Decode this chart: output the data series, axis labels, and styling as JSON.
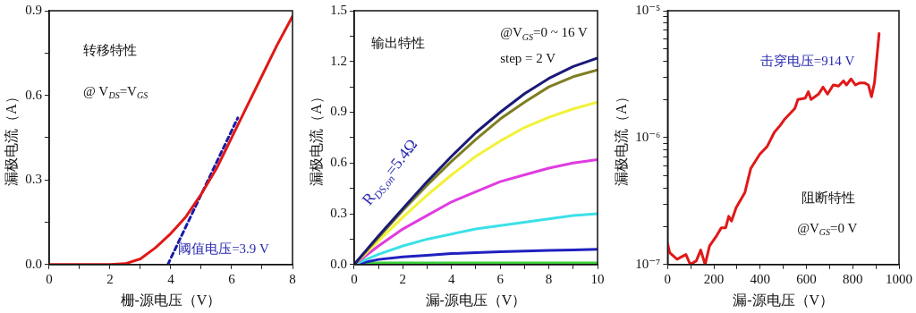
{
  "chart_data": [
    {
      "type": "line",
      "xlabel": "栅-源电压（V）",
      "ylabel": "漏极电流（A）",
      "xlim": [
        0,
        8
      ],
      "ylim": [
        0,
        0.9
      ],
      "xticks": [
        0,
        {
          "value": 1,
          "label": null
        },
        2,
        {
          "value": 3,
          "label": null
        },
        4,
        {
          "value": 5,
          "label": null
        },
        6,
        {
          "value": 7,
          "label": null
        },
        8
      ],
      "yticks": [
        {
          "value": 0,
          "label": "0.0"
        },
        {
          "value": 0.15,
          "label": null
        },
        {
          "value": 0.3,
          "label": "0.3"
        },
        {
          "value": 0.45,
          "label": null
        },
        {
          "value": 0.6,
          "label": "0.6"
        },
        {
          "value": 0.75,
          "label": null
        },
        {
          "value": 0.9,
          "label": "0.9"
        }
      ],
      "x": [
        0,
        1,
        2,
        2.5,
        3,
        3.5,
        4,
        4.5,
        5,
        5.5,
        6,
        6.5,
        7,
        7.5,
        8
      ],
      "series": [
        {
          "color": "#e01818",
          "values": [
            0,
            0,
            0,
            0.003,
            0.02,
            0.06,
            0.11,
            0.17,
            0.25,
            0.34,
            0.45,
            0.56,
            0.67,
            0.78,
            0.88
          ]
        },
        {
          "type": "line",
          "color": "#1a1aa8",
          "x": [
            3.9,
            6.2
          ],
          "values": [
            0,
            0.52
          ],
          "line_style": "dashed"
        }
      ],
      "annotations": [
        "转移特性",
        "@ V$_{DS}$=V$_{GS}$",
        "阈值电压=3.9 V"
      ],
      "grid": false,
      "legend": false,
      "marker": "none"
    },
    {
      "type": "line",
      "xlabel": "漏-源电压（V）",
      "ylabel": "漏极电流（A）",
      "xlim": [
        0,
        10
      ],
      "ylim": [
        0,
        1.5
      ],
      "xticks": [
        0,
        {
          "value": 1,
          "label": null
        },
        2,
        {
          "value": 3,
          "label": null
        },
        4,
        {
          "value": 5,
          "label": null
        },
        6,
        {
          "value": 7,
          "label": null
        },
        8,
        {
          "value": 9,
          "label": null
        },
        10
      ],
      "yticks": [
        {
          "value": 0,
          "label": "0.0"
        },
        {
          "value": 0.15,
          "label": null
        },
        {
          "value": 0.3,
          "label": "0.3"
        },
        {
          "value": 0.45,
          "label": null
        },
        {
          "value": 0.6,
          "label": "0.6"
        },
        {
          "value": 0.75,
          "label": null
        },
        {
          "value": 0.9,
          "label": "0.9"
        },
        {
          "value": 1.05,
          "label": null
        },
        {
          "value": 1.2,
          "label": "1.2"
        },
        {
          "value": 1.35,
          "label": null
        },
        {
          "value": 1.5,
          "label": "1.5"
        }
      ],
      "x": [
        0,
        1,
        2,
        3,
        4,
        5,
        6,
        7,
        8,
        9,
        10
      ],
      "series": [
        {
          "color": "#1a1a78",
          "values": [
            0,
            0.17,
            0.33,
            0.49,
            0.64,
            0.78,
            0.9,
            1.01,
            1.1,
            1.17,
            1.22
          ]
        },
        {
          "color": "#7e7e22",
          "values": [
            0,
            0.16,
            0.32,
            0.47,
            0.61,
            0.74,
            0.86,
            0.96,
            1.05,
            1.11,
            1.15
          ]
        },
        {
          "color": "#f2f23a",
          "values": [
            0,
            0.14,
            0.28,
            0.41,
            0.53,
            0.64,
            0.73,
            0.81,
            0.87,
            0.92,
            0.96
          ]
        },
        {
          "color": "#e03ce0",
          "values": [
            0,
            0.11,
            0.21,
            0.29,
            0.37,
            0.43,
            0.49,
            0.53,
            0.57,
            0.6,
            0.62
          ]
        },
        {
          "color": "#3ce0e8",
          "values": [
            0,
            0.06,
            0.11,
            0.15,
            0.18,
            0.21,
            0.23,
            0.25,
            0.27,
            0.29,
            0.3
          ]
        },
        {
          "color": "#2020c0",
          "values": [
            0,
            0.03,
            0.045,
            0.055,
            0.065,
            0.07,
            0.075,
            0.08,
            0.083,
            0.086,
            0.09
          ]
        },
        {
          "color": "#3cd03c",
          "values": [
            0.01,
            0.01,
            0.01,
            0.01,
            0.01,
            0.01,
            0.01,
            0.01,
            0.01,
            0.01,
            0.01
          ]
        }
      ],
      "annotations": [
        "输出特性",
        "@V$_{GS}$=0 ~ 16 V",
        "step = 2 V",
        "R$_{DS,on}$=5.4Ω"
      ],
      "grid": false,
      "legend": false,
      "marker": "none"
    },
    {
      "type": "line",
      "xlabel": "漏-源电压（V）",
      "ylabel": "漏极电流（A）",
      "xlim": [
        0,
        1000
      ],
      "ylim": [
        1e-07,
        1e-05
      ],
      "log": "y",
      "xticks": [
        0,
        {
          "value": 100,
          "label": null
        },
        200,
        {
          "value": 300,
          "label": null
        },
        400,
        {
          "value": 500,
          "label": null
        },
        600,
        {
          "value": 700,
          "label": null
        },
        800,
        {
          "value": 900,
          "label": null
        },
        1000
      ],
      "yticks": [
        {
          "value": 1e-07,
          "label": "10⁻⁷"
        },
        {
          "value": 2e-07,
          "label": null
        },
        {
          "value": 3e-07,
          "label": null
        },
        {
          "value": 4e-07,
          "label": null
        },
        {
          "value": 5e-07,
          "label": null
        },
        {
          "value": 6e-07,
          "label": null
        },
        {
          "value": 7e-07,
          "label": null
        },
        {
          "value": 8e-07,
          "label": null
        },
        {
          "value": 9e-07,
          "label": null
        },
        {
          "value": 1e-06,
          "label": "10⁻⁶"
        },
        {
          "value": 2e-06,
          "label": null
        },
        {
          "value": 3e-06,
          "label": null
        },
        {
          "value": 4e-06,
          "label": null
        },
        {
          "value": 5e-06,
          "label": null
        },
        {
          "value": 6e-06,
          "label": null
        },
        {
          "value": 7e-06,
          "label": null
        },
        {
          "value": 8e-06,
          "label": null
        },
        {
          "value": 9e-06,
          "label": null
        },
        {
          "value": 1e-05,
          "label": "10⁻⁵"
        }
      ],
      "x": [
        0,
        9,
        41,
        79,
        98,
        124,
        143,
        162,
        181,
        213,
        232,
        251,
        264,
        276,
        296,
        334,
        359,
        398,
        430,
        461,
        487,
        506,
        550,
        563,
        595,
        608,
        620,
        652,
        672,
        691,
        716,
        739,
        760,
        773,
        793,
        812,
        831,
        850,
        868,
        881,
        894,
        914
      ],
      "series": [
        {
          "color": "#e01818",
          "values": [
            1.46e-07,
            1.24e-07,
            1.1e-07,
            1.2e-07,
            1e-07,
            1.07e-07,
            1.3e-07,
            1e-07,
            1.4e-07,
            1.7e-07,
            1.95e-07,
            1.95e-07,
            2.4e-07,
            2.2e-07,
            2.8e-07,
            3.7e-07,
            5.7e-07,
            7.4e-07,
            8.5e-07,
            1.1e-06,
            1.25e-06,
            1.4e-06,
            1.7e-06,
            2e-06,
            2.05e-06,
            2.3e-06,
            2e-06,
            2.2e-06,
            2.5e-06,
            2.2e-06,
            2.6e-06,
            2.55e-06,
            2.8e-06,
            2.6e-06,
            2.9e-06,
            2.6e-06,
            2.7e-06,
            2.7e-06,
            2.6e-06,
            2.1e-06,
            2.7e-06,
            6.6e-06
          ]
        }
      ],
      "annotations": [
        "击穿电压=914 V",
        "阻断特性",
        "@V$_{GS}$=0 V"
      ],
      "grid": false,
      "legend": false,
      "marker": "none"
    }
  ]
}
